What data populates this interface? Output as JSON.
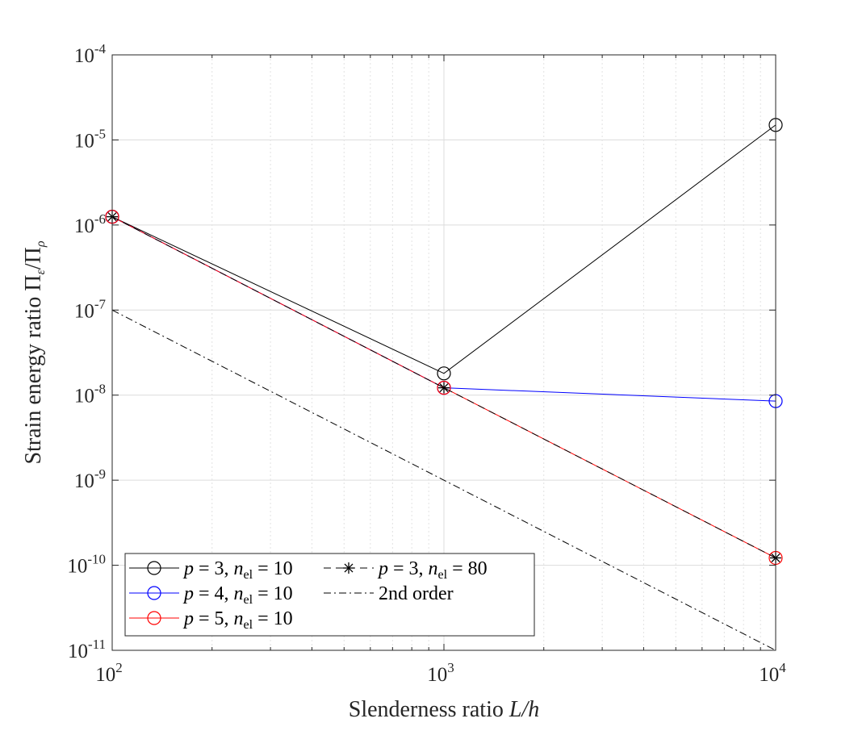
{
  "chart_data": {
    "type": "line",
    "xscale": "log",
    "yscale": "log",
    "xlim": [
      100,
      10000
    ],
    "ylim": [
      1e-11,
      0.0001
    ],
    "grid": true,
    "xlabel": {
      "text": "Slenderness ratio ",
      "var": "L/h"
    },
    "ylabel": {
      "text": "Strain energy ratio ",
      "var": "Π",
      "sub1": "ε",
      "sep": "/Π",
      "sub2": "ρ"
    },
    "x_ticks": [
      {
        "value": 100,
        "base": "10",
        "exp": "2"
      },
      {
        "value": 1000,
        "base": "10",
        "exp": "3"
      },
      {
        "value": 10000,
        "base": "10",
        "exp": "4"
      }
    ],
    "y_ticks": [
      {
        "value": 0.0001,
        "base": "10",
        "exp": "-4"
      },
      {
        "value": 1e-05,
        "base": "10",
        "exp": "-5"
      },
      {
        "value": 1e-06,
        "base": "10",
        "exp": "-6"
      },
      {
        "value": 1e-07,
        "base": "10",
        "exp": "-7"
      },
      {
        "value": 1e-08,
        "base": "10",
        "exp": "-8"
      },
      {
        "value": 1e-09,
        "base": "10",
        "exp": "-9"
      },
      {
        "value": 1e-10,
        "base": "10",
        "exp": "-10"
      },
      {
        "value": 1e-11,
        "base": "10",
        "exp": "-11"
      }
    ],
    "series": [
      {
        "name": "p = 3, n_el = 10",
        "p": "3",
        "nel": "10",
        "color": "#000000",
        "marker": "circle",
        "dash": "solid",
        "x": [
          100,
          1000,
          10000
        ],
        "y": [
          1.25e-06,
          1.8e-08,
          1.5e-05
        ]
      },
      {
        "name": "p = 4, n_el = 10",
        "p": "4",
        "nel": "10",
        "color": "#0000ff",
        "marker": "circle",
        "dash": "solid",
        "x": [
          100,
          1000,
          10000
        ],
        "y": [
          1.25e-06,
          1.22e-08,
          8.5e-09
        ]
      },
      {
        "name": "p = 5, n_el = 10",
        "p": "5",
        "nel": "10",
        "color": "#ff0000",
        "marker": "circle",
        "dash": "solid",
        "x": [
          100,
          1000,
          10000
        ],
        "y": [
          1.25e-06,
          1.22e-08,
          1.22e-10
        ]
      },
      {
        "name": "p = 3, n_el = 80",
        "p": "3",
        "nel": "80",
        "color": "#000000",
        "marker": "asterisk",
        "dash": "dashed",
        "x": [
          100,
          1000,
          10000
        ],
        "y": [
          1.25e-06,
          1.22e-08,
          1.22e-10
        ]
      },
      {
        "name": "2nd order",
        "color": "#000000",
        "marker": "none",
        "dash": "dashdot",
        "x": [
          100,
          10000
        ],
        "y": [
          1e-07,
          1e-11
        ]
      }
    ],
    "legend": {
      "placement": "bottom-left",
      "entries": [
        {
          "series": 0,
          "label_p": "p",
          "label_eq": " = 3, ",
          "label_n": "n",
          "label_sub": "el",
          "label_eq2": " = 10"
        },
        {
          "series": 3,
          "label_p": "p",
          "label_eq": " = 3, ",
          "label_n": "n",
          "label_sub": "el",
          "label_eq2": " = 80"
        },
        {
          "series": 1,
          "label_p": "p",
          "label_eq": " = 4, ",
          "label_n": "n",
          "label_sub": "el",
          "label_eq2": " = 10"
        },
        {
          "series": 4,
          "label_plain": "2nd order"
        },
        {
          "series": 2,
          "label_p": "p",
          "label_eq": " = 5, ",
          "label_n": "n",
          "label_sub": "el",
          "label_eq2": " = 10"
        }
      ]
    }
  }
}
